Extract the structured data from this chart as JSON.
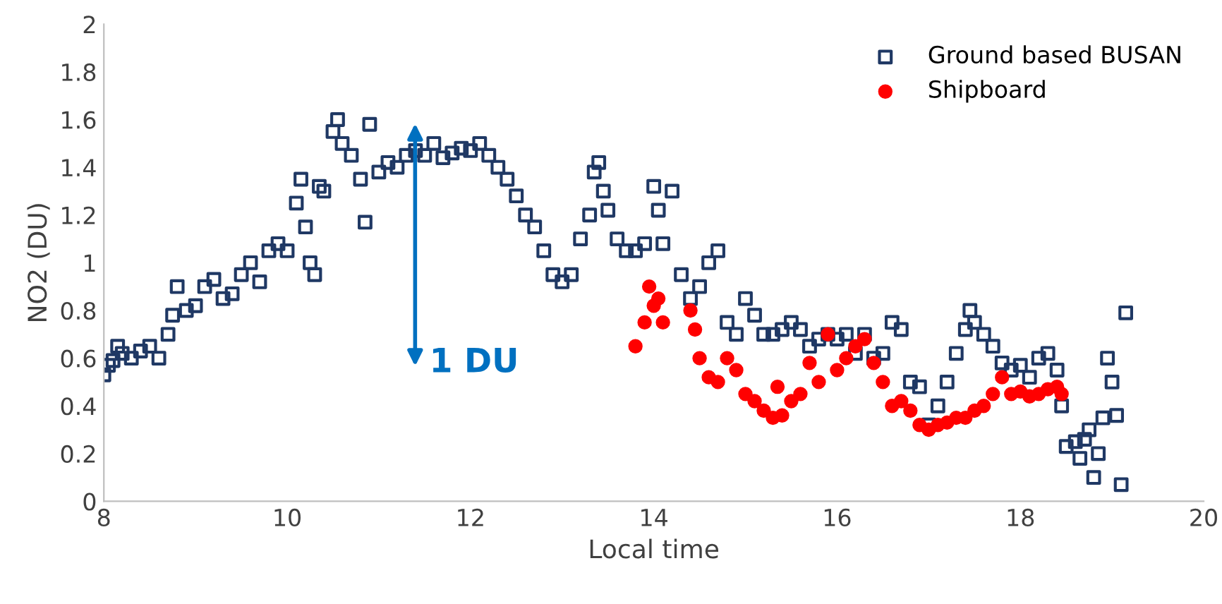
{
  "chart_data": {
    "type": "scatter",
    "xlabel": "Local time",
    "ylabel": "NO2 (DU)",
    "xlim": [
      8,
      20
    ],
    "xticks": [
      8,
      10,
      12,
      14,
      16,
      18,
      20
    ],
    "ylim": [
      0,
      2
    ],
    "yticks": [
      0,
      0.2,
      0.4,
      0.6,
      0.8,
      1,
      1.2,
      1.4,
      1.6,
      1.8,
      2
    ],
    "grid": false,
    "legend": "top right",
    "annotations": [
      "1 DU"
    ],
    "series": [
      {
        "name": "Ground based BUSAN",
        "color": "#1f3864",
        "marker": "square",
        "x": [
          8.0,
          8.05,
          8.1,
          8.15,
          8.2,
          8.3,
          8.4,
          8.5,
          8.6,
          8.7,
          8.75,
          8.8,
          8.9,
          9.0,
          9.1,
          9.2,
          9.3,
          9.4,
          9.5,
          9.6,
          9.7,
          9.8,
          9.9,
          10.0,
          10.1,
          10.15,
          10.2,
          10.25,
          10.3,
          10.35,
          10.4,
          10.5,
          10.55,
          10.6,
          10.7,
          10.8,
          10.85,
          10.9,
          11.0,
          11.1,
          11.2,
          11.3,
          11.4,
          11.5,
          11.6,
          11.7,
          11.8,
          11.9,
          12.0,
          12.1,
          12.2,
          12.3,
          12.4,
          12.5,
          12.6,
          12.7,
          12.8,
          12.9,
          13.0,
          13.1,
          13.2,
          13.3,
          13.35,
          13.4,
          13.45,
          13.5,
          13.6,
          13.7,
          13.8,
          13.9,
          14.0,
          14.05,
          14.1,
          14.2,
          14.3,
          14.4,
          14.5,
          14.6,
          14.7,
          14.8,
          14.9,
          15.0,
          15.1,
          15.2,
          15.3,
          15.4,
          15.5,
          15.6,
          15.7,
          15.8,
          15.9,
          16.0,
          16.1,
          16.2,
          16.3,
          16.4,
          16.5,
          16.6,
          16.7,
          16.8,
          16.9,
          17.0,
          17.1,
          17.2,
          17.3,
          17.4,
          17.45,
          17.5,
          17.6,
          17.7,
          17.8,
          17.9,
          18.0,
          18.1,
          18.2,
          18.3,
          18.4,
          18.45,
          18.5,
          18.6,
          18.65,
          18.7,
          18.75,
          18.8,
          18.85,
          18.9,
          18.95,
          19.0,
          19.05,
          19.1,
          19.15
        ],
        "values": [
          0.53,
          0.57,
          0.59,
          0.65,
          0.62,
          0.6,
          0.63,
          0.65,
          0.6,
          0.7,
          0.78,
          0.9,
          0.8,
          0.82,
          0.9,
          0.93,
          0.85,
          0.87,
          0.95,
          1.0,
          0.92,
          1.05,
          1.08,
          1.05,
          1.25,
          1.35,
          1.15,
          1.0,
          0.95,
          1.32,
          1.3,
          1.55,
          1.6,
          1.5,
          1.45,
          1.35,
          1.17,
          1.58,
          1.38,
          1.42,
          1.4,
          1.45,
          1.47,
          1.45,
          1.5,
          1.44,
          1.46,
          1.48,
          1.47,
          1.5,
          1.45,
          1.4,
          1.35,
          1.28,
          1.2,
          1.15,
          1.05,
          0.95,
          0.92,
          0.95,
          1.1,
          1.2,
          1.38,
          1.42,
          1.3,
          1.22,
          1.1,
          1.05,
          1.05,
          1.08,
          1.32,
          1.22,
          1.08,
          1.3,
          0.95,
          0.85,
          0.9,
          1.0,
          1.05,
          0.75,
          0.7,
          0.85,
          0.78,
          0.7,
          0.7,
          0.72,
          0.75,
          0.72,
          0.65,
          0.68,
          0.7,
          0.68,
          0.7,
          0.62,
          0.7,
          0.6,
          0.62,
          0.75,
          0.72,
          0.5,
          0.48,
          0.32,
          0.4,
          0.5,
          0.62,
          0.72,
          0.8,
          0.75,
          0.7,
          0.65,
          0.58,
          0.55,
          0.57,
          0.52,
          0.6,
          0.62,
          0.55,
          0.4,
          0.23,
          0.25,
          0.18,
          0.26,
          0.3,
          0.1,
          0.2,
          0.35,
          0.6,
          0.5,
          0.36,
          0.07,
          0.79
        ]
      },
      {
        "name": "Shipboard",
        "color": "#ff0000",
        "marker": "circle",
        "x": [
          13.8,
          13.9,
          13.95,
          14.0,
          14.05,
          14.1,
          14.4,
          14.45,
          14.5,
          14.6,
          14.7,
          14.8,
          14.9,
          15.0,
          15.1,
          15.2,
          15.3,
          15.35,
          15.4,
          15.5,
          15.6,
          15.7,
          15.8,
          15.9,
          16.0,
          16.1,
          16.2,
          16.3,
          16.4,
          16.5,
          16.6,
          16.7,
          16.8,
          16.9,
          17.0,
          17.1,
          17.2,
          17.3,
          17.4,
          17.5,
          17.6,
          17.7,
          17.8,
          17.9,
          18.0,
          18.1,
          18.2,
          18.3,
          18.4,
          18.45
        ],
        "values": [
          0.65,
          0.75,
          0.9,
          0.82,
          0.85,
          0.75,
          0.8,
          0.72,
          0.6,
          0.52,
          0.5,
          0.6,
          0.55,
          0.45,
          0.42,
          0.38,
          0.35,
          0.48,
          0.36,
          0.42,
          0.45,
          0.58,
          0.5,
          0.7,
          0.55,
          0.6,
          0.65,
          0.68,
          0.58,
          0.5,
          0.4,
          0.42,
          0.38,
          0.32,
          0.3,
          0.32,
          0.33,
          0.35,
          0.35,
          0.38,
          0.4,
          0.45,
          0.52,
          0.45,
          0.46,
          0.44,
          0.45,
          0.47,
          0.48,
          0.45
        ]
      }
    ]
  }
}
